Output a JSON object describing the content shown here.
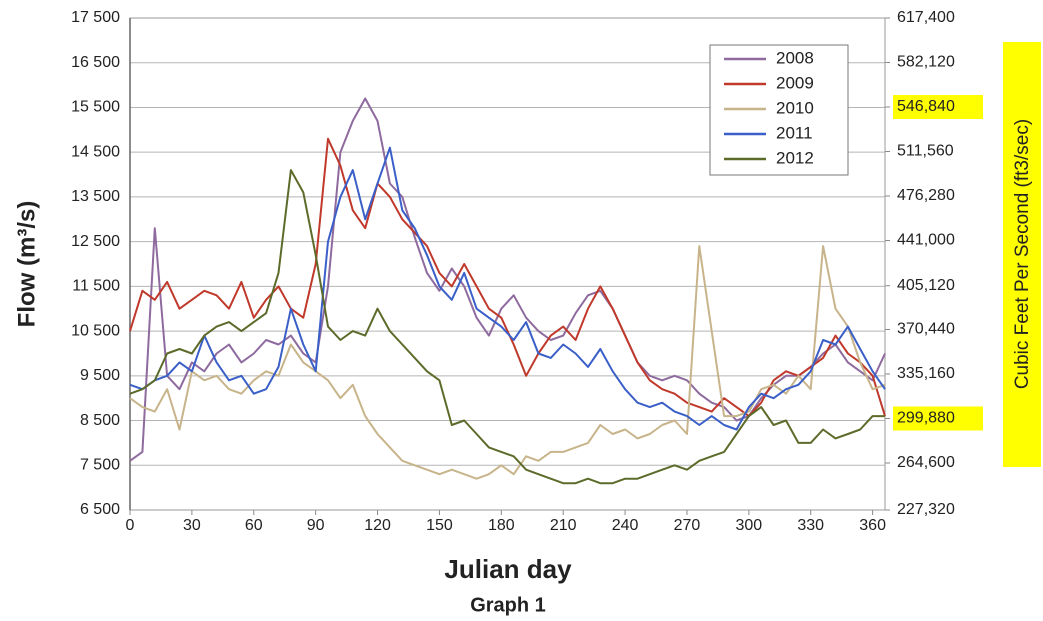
{
  "chart_data": {
    "type": "line",
    "title": "Graph  1",
    "xlabel": "Julian day",
    "ylabel": "Flow (m³/s)",
    "y2label": "Cubic Feet Per Second (ft3/sec)",
    "y2label_background": "#ffff00",
    "highlight_color": "#ffff00",
    "grid": true,
    "legend_loc": "upper right",
    "xlim": [
      0,
      366
    ],
    "xticks": [
      0,
      30,
      60,
      90,
      120,
      150,
      180,
      210,
      240,
      270,
      300,
      330,
      360
    ],
    "ylim": [
      6500,
      17500
    ],
    "yticks": [
      {
        "value": 6500,
        "label": "6 500"
      },
      {
        "value": 7500,
        "label": "7 500"
      },
      {
        "value": 8500,
        "label": "8 500"
      },
      {
        "value": 9500,
        "label": "9 500"
      },
      {
        "value": 10500,
        "label": "10 500"
      },
      {
        "value": 11500,
        "label": "11 500"
      },
      {
        "value": 12500,
        "label": "12 500"
      },
      {
        "value": 13500,
        "label": "13 500"
      },
      {
        "value": 14500,
        "label": "14 500"
      },
      {
        "value": 15500,
        "label": "15 500"
      },
      {
        "value": 16500,
        "label": "16 500"
      },
      {
        "value": 17500,
        "label": "17 500"
      }
    ],
    "y2lim": [
      227320,
      617400
    ],
    "y2ticks": [
      {
        "value": 227320,
        "label": "227,320"
      },
      {
        "value": 264600,
        "label": "264,600"
      },
      {
        "value": 299880,
        "label": "299,880",
        "highlight": true
      },
      {
        "value": 335160,
        "label": "335,160"
      },
      {
        "value": 370440,
        "label": "370,440"
      },
      {
        "value": 405120,
        "label": "405,120"
      },
      {
        "value": 441000,
        "label": "441,000"
      },
      {
        "value": 476280,
        "label": "476,280"
      },
      {
        "value": 511560,
        "label": "511,560"
      },
      {
        "value": 546840,
        "label": "546,840",
        "highlight": true
      },
      {
        "value": 582120,
        "label": "582,120"
      },
      {
        "value": 617400,
        "label": "617,400"
      }
    ],
    "x": [
      0,
      6,
      12,
      18,
      24,
      30,
      36,
      42,
      48,
      54,
      60,
      66,
      72,
      78,
      84,
      90,
      96,
      102,
      108,
      114,
      120,
      126,
      132,
      138,
      144,
      150,
      156,
      162,
      168,
      174,
      180,
      186,
      192,
      198,
      204,
      210,
      216,
      222,
      228,
      234,
      240,
      246,
      252,
      258,
      264,
      270,
      276,
      282,
      288,
      294,
      300,
      306,
      312,
      318,
      324,
      330,
      336,
      342,
      348,
      354,
      360,
      366
    ],
    "series": [
      {
        "name": "2008",
        "color": "#8e6a9e",
        "values": [
          7600,
          7800,
          12800,
          9500,
          9200,
          9800,
          9600,
          10000,
          10200,
          9800,
          10000,
          10300,
          10200,
          10400,
          10000,
          9800,
          11500,
          14500,
          15200,
          15700,
          15200,
          13800,
          13500,
          12600,
          11800,
          11400,
          11900,
          11500,
          10800,
          10400,
          11000,
          11300,
          10800,
          10500,
          10300,
          10400,
          10900,
          11300,
          11400,
          11000,
          10400,
          9800,
          9500,
          9400,
          9500,
          9400,
          9100,
          8900,
          8800,
          8500,
          8600,
          9000,
          9300,
          9500,
          9500,
          9700,
          10000,
          10200,
          9800,
          9600,
          9400,
          10000
        ]
      },
      {
        "name": "2009",
        "color": "#c0392b",
        "values": [
          10500,
          11400,
          11200,
          11600,
          11000,
          11200,
          11400,
          11300,
          11000,
          11600,
          10800,
          11200,
          11500,
          11000,
          10800,
          12000,
          14800,
          14200,
          13200,
          12800,
          13800,
          13500,
          13000,
          12700,
          12400,
          11800,
          11500,
          12000,
          11500,
          11000,
          10800,
          10200,
          9500,
          10000,
          10400,
          10600,
          10300,
          11000,
          11500,
          11000,
          10400,
          9800,
          9400,
          9200,
          9100,
          8900,
          8800,
          8700,
          9000,
          8800,
          8600,
          8900,
          9400,
          9600,
          9500,
          9700,
          9900,
          10400,
          10000,
          9800,
          9500,
          8600
        ]
      },
      {
        "name": "2010",
        "color": "#c8b48a",
        "values": [
          9000,
          8800,
          8700,
          9200,
          8300,
          9600,
          9400,
          9500,
          9200,
          9100,
          9400,
          9600,
          9500,
          10200,
          9800,
          9600,
          9400,
          9000,
          9300,
          8600,
          8200,
          7900,
          7600,
          7500,
          7400,
          7300,
          7400,
          7300,
          7200,
          7300,
          7500,
          7300,
          7700,
          7600,
          7800,
          7800,
          7900,
          8000,
          8400,
          8200,
          8300,
          8100,
          8200,
          8400,
          8500,
          8200,
          12400,
          10500,
          8600,
          8600,
          8700,
          9200,
          9300,
          9100,
          9500,
          9200,
          12400,
          11000,
          10600,
          9800,
          9200,
          9300
        ]
      },
      {
        "name": "2011",
        "color": "#3a5fc8",
        "values": [
          9300,
          9200,
          9400,
          9500,
          9800,
          9600,
          10400,
          9800,
          9400,
          9500,
          9100,
          9200,
          9700,
          11000,
          10200,
          9600,
          12500,
          13500,
          14100,
          13000,
          13800,
          14600,
          13200,
          12800,
          12200,
          11500,
          11200,
          11800,
          11000,
          10800,
          10600,
          10300,
          10700,
          10000,
          9900,
          10200,
          10000,
          9700,
          10100,
          9600,
          9200,
          8900,
          8800,
          8900,
          8700,
          8600,
          8400,
          8600,
          8400,
          8300,
          8800,
          9100,
          9000,
          9200,
          9300,
          9600,
          10300,
          10200,
          10600,
          10100,
          9600,
          9200
        ]
      },
      {
        "name": "2012",
        "color": "#5c6b2a",
        "values": [
          9100,
          9200,
          9400,
          10000,
          10100,
          10000,
          10400,
          10600,
          10700,
          10500,
          10700,
          10900,
          11800,
          14100,
          13600,
          12200,
          10600,
          10300,
          10500,
          10400,
          11000,
          10500,
          10200,
          9900,
          9600,
          9400,
          8400,
          8500,
          8200,
          7900,
          7800,
          7700,
          7400,
          7300,
          7200,
          7100,
          7100,
          7200,
          7100,
          7100,
          7200,
          7200,
          7300,
          7400,
          7500,
          7400,
          7600,
          7700,
          7800,
          8200,
          8600,
          8800,
          8400,
          8500,
          8000,
          8000,
          8300,
          8100,
          8200,
          8300,
          8600,
          8600
        ]
      }
    ]
  }
}
